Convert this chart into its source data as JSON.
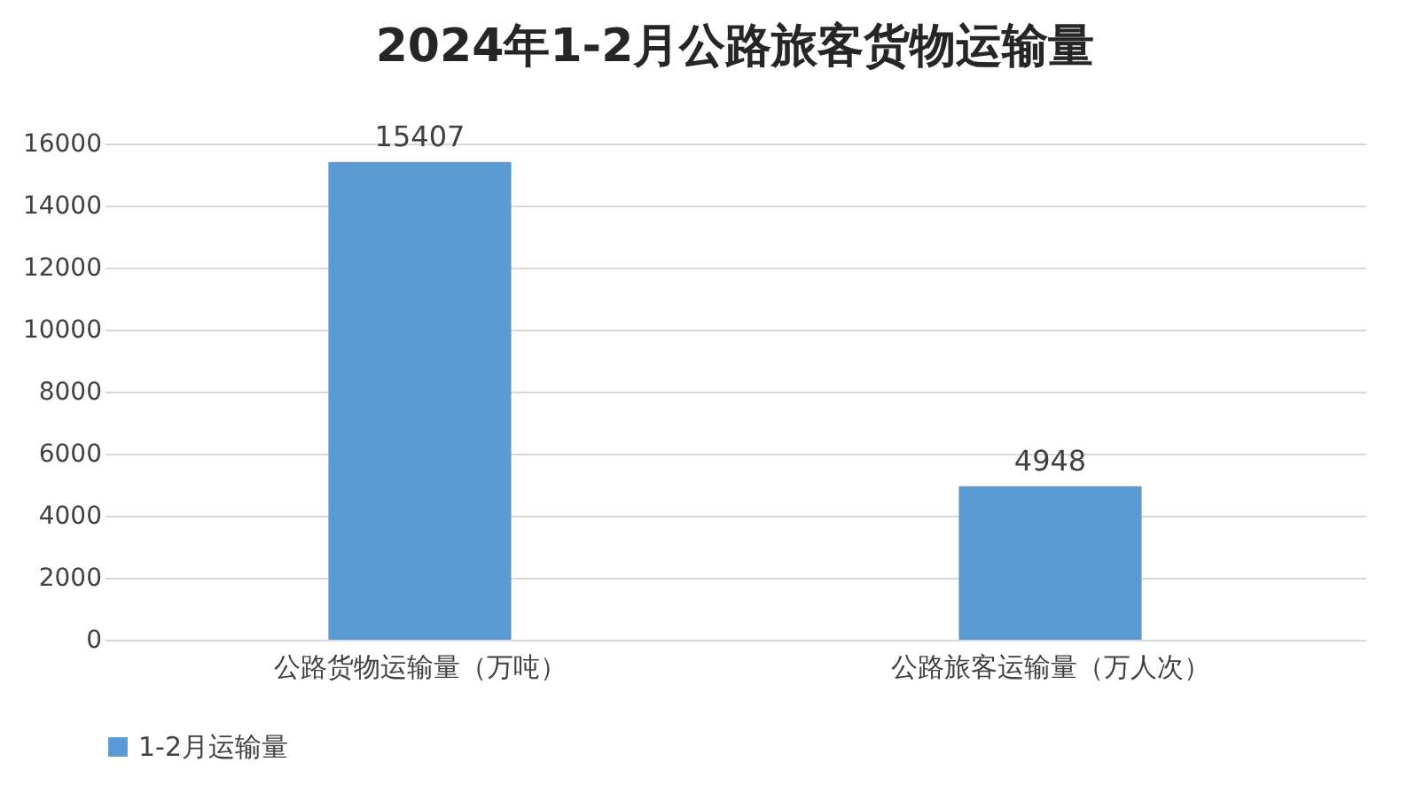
{
  "chart_data": {
    "type": "bar",
    "title": "2024年1-2月公路旅客货物运输量",
    "categories": [
      "公路货物运输量（万吨）",
      "公路旅客运输量（万人次）"
    ],
    "series": [
      {
        "name": "1-2月运输量",
        "color": "#5b9bd5",
        "values": [
          15407,
          4948
        ]
      }
    ],
    "ylim": [
      0,
      16000
    ],
    "yticks": [
      0,
      2000,
      4000,
      6000,
      8000,
      10000,
      12000,
      14000,
      16000
    ],
    "grid": "y",
    "legend": "bottom",
    "data_labels": true
  }
}
